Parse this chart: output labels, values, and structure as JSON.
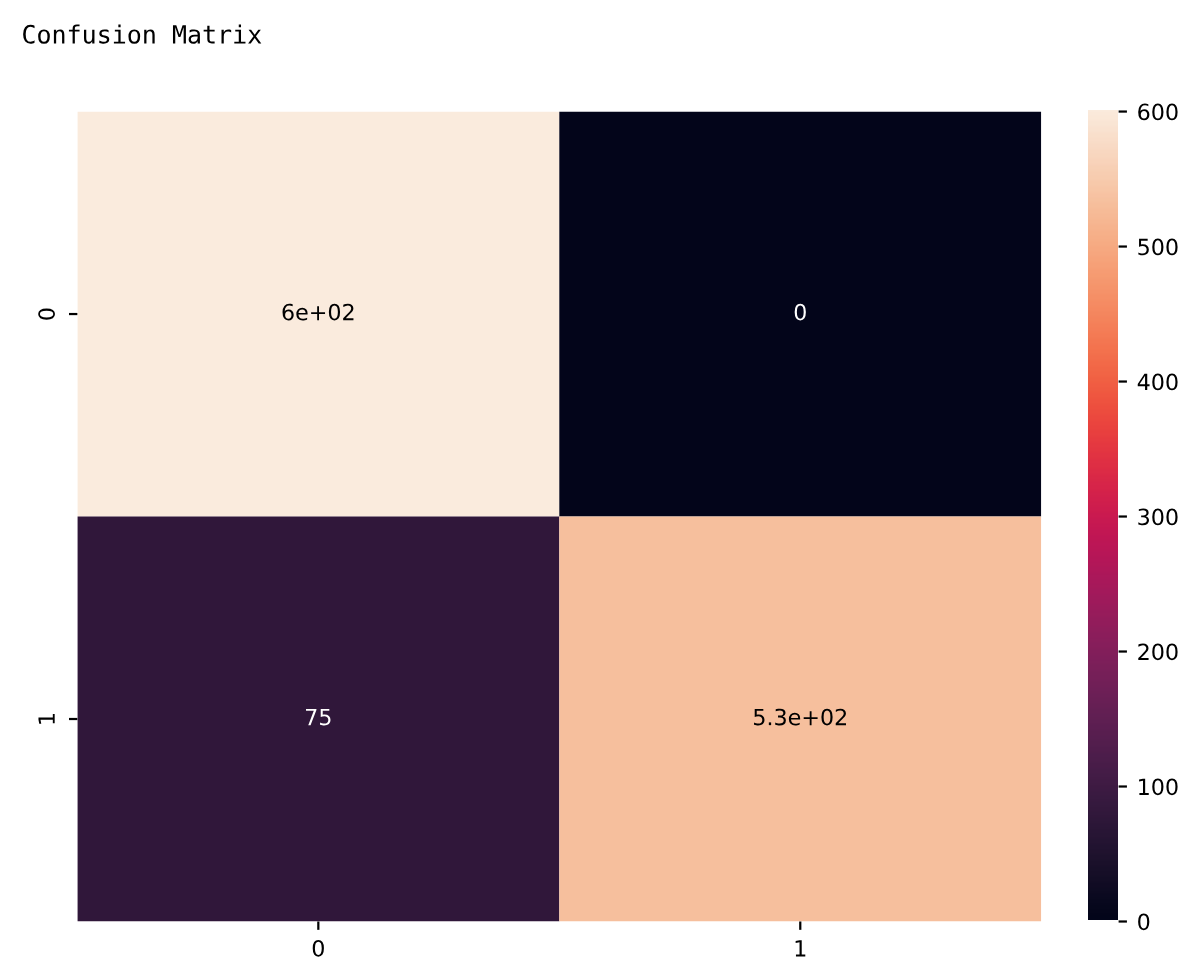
{
  "chart_data": {
    "type": "heatmap",
    "title": "Confusion Matrix",
    "categories": [
      "0",
      "1"
    ],
    "y_categories": [
      "0",
      "1"
    ],
    "cells": [
      [
        600,
        0
      ],
      [
        75,
        530
      ]
    ],
    "cell_labels": [
      [
        "6e+02",
        "0"
      ],
      [
        "75",
        "5.3e+02"
      ]
    ],
    "clim": [
      0,
      600
    ],
    "cticks": [
      0,
      100,
      200,
      300,
      400,
      500,
      600
    ]
  }
}
